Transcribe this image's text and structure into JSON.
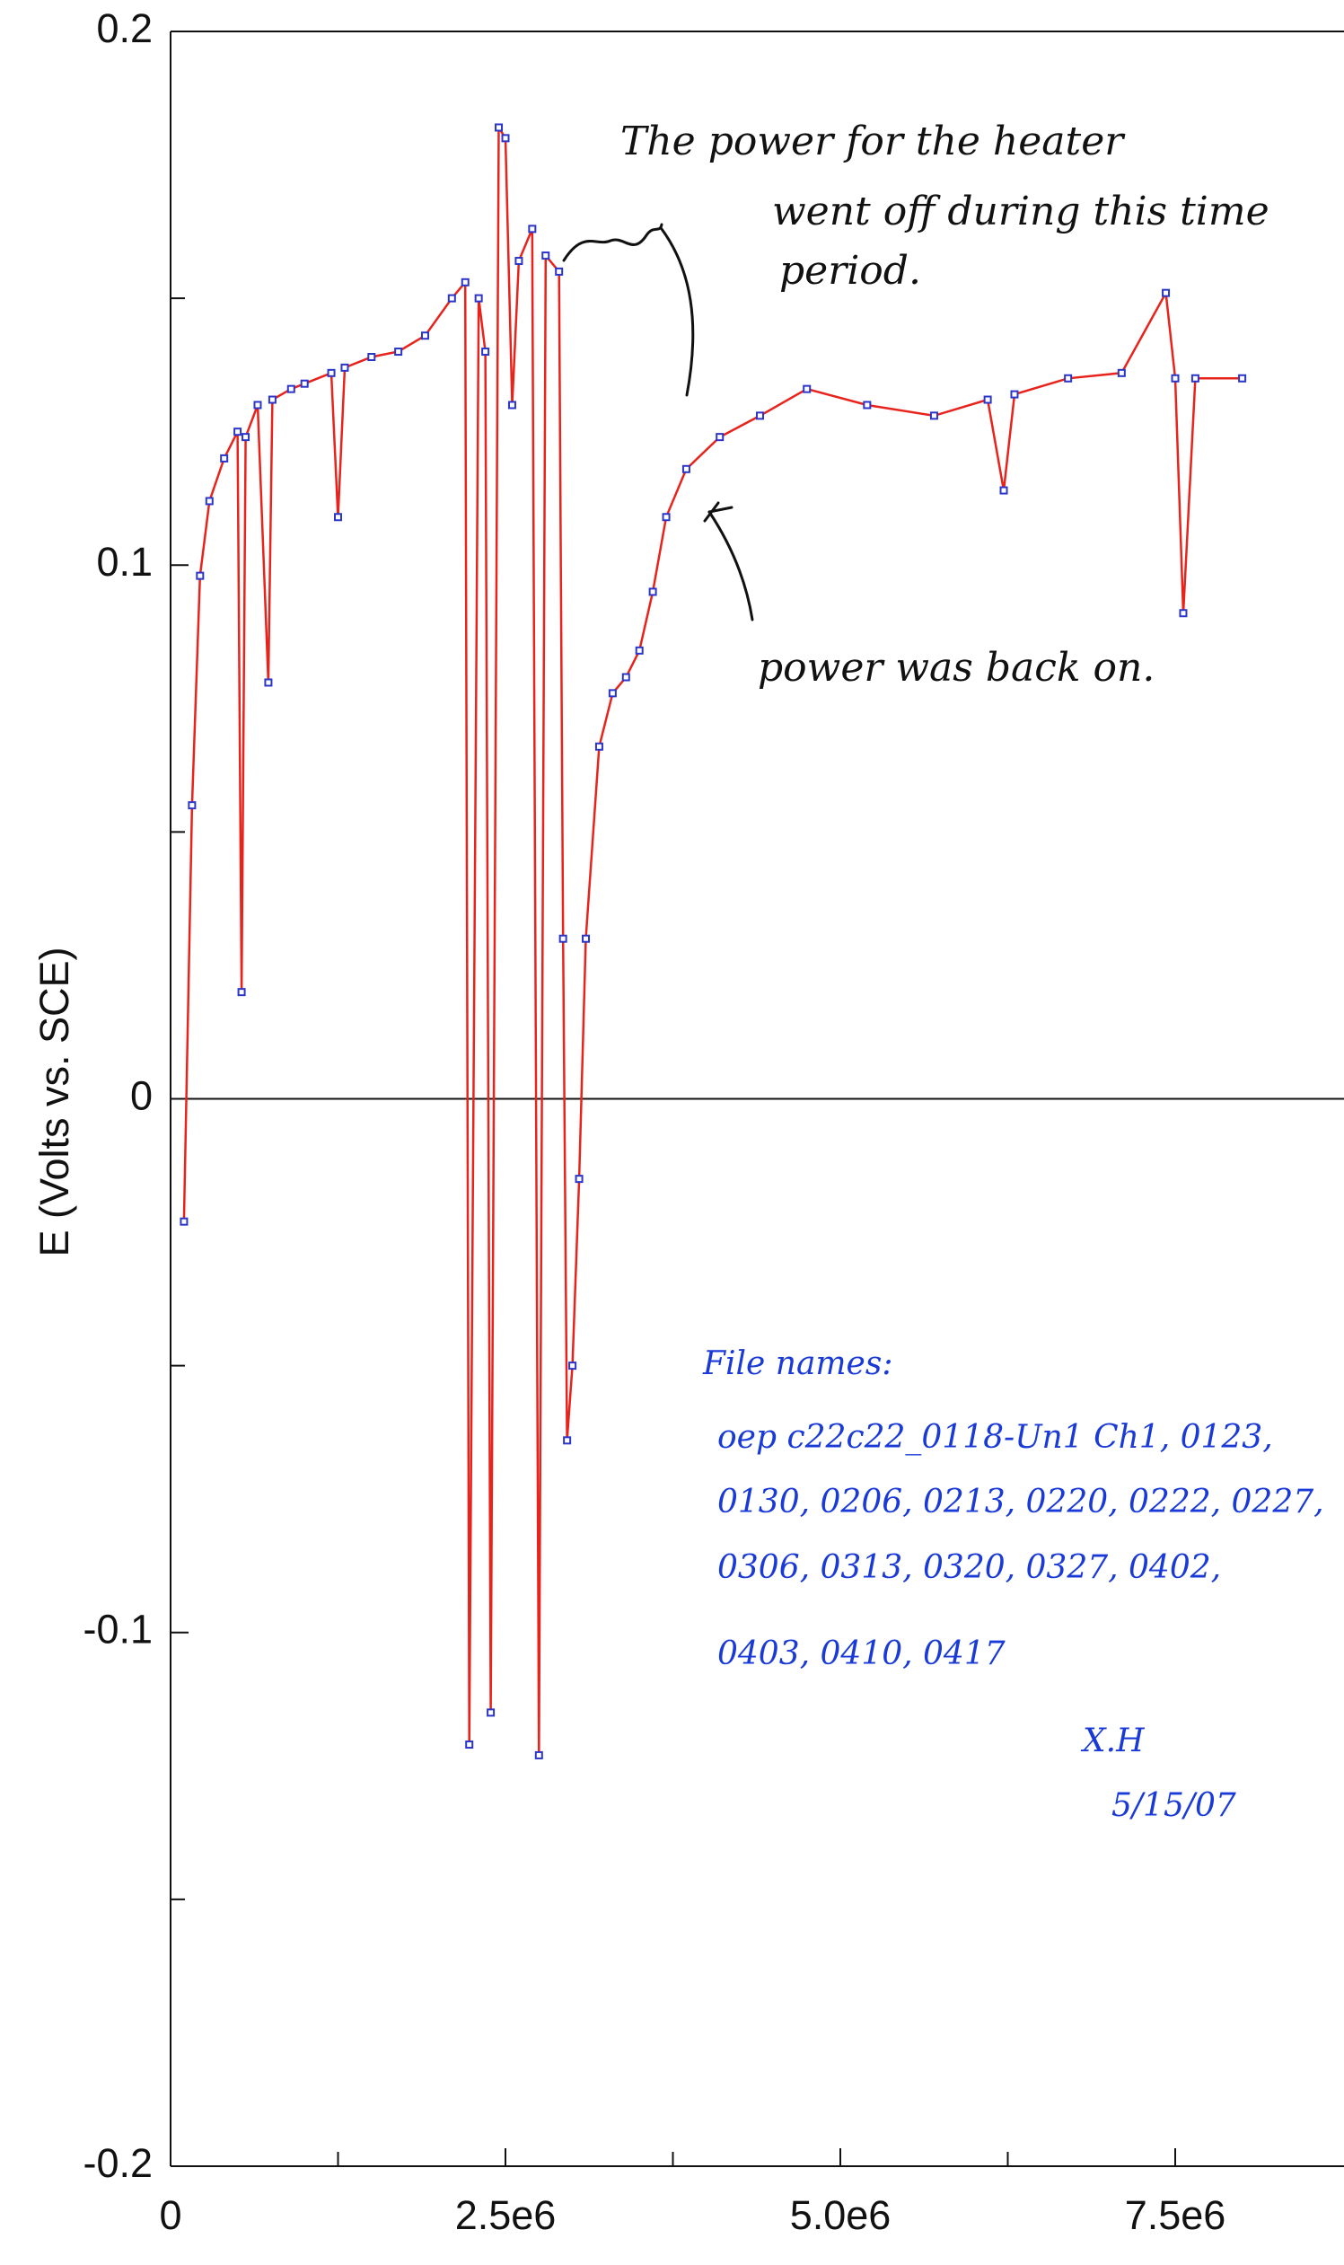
{
  "chart_data": {
    "type": "line",
    "y_label": "E (Volts vs. SCE)",
    "xlim": [
      0,
      8760000
    ],
    "ylim": [
      -0.2,
      0.2
    ],
    "xticks": [
      0,
      {
        "value": 2500000,
        "label": "2.5e6"
      },
      {
        "value": 5000000,
        "label": "5.0e6"
      },
      {
        "value": 7500000,
        "label": "7.5e6"
      }
    ],
    "x_minor_ticks": [
      1250000,
      3750000,
      6250000
    ],
    "yticks": [
      -0.2,
      -0.1,
      0,
      0.1,
      0.2
    ],
    "y_minor_ticks": [
      -0.15,
      -0.05,
      0.05,
      0.15
    ],
    "zero_line": true,
    "series": [
      {
        "color": "#e8231c",
        "marker_color": "#2b35c8",
        "x": [
          100000,
          160000,
          220000,
          290000,
          400000,
          500000,
          530000,
          560000,
          650000,
          730000,
          760000,
          900000,
          1000000,
          1200000,
          1250000,
          1300000,
          1500000,
          1700000,
          1900000,
          2100000,
          2200000,
          2230000,
          2300000,
          2350000,
          2390000,
          2450000,
          2500000,
          2550000,
          2600000,
          2700000,
          2750000,
          2800000,
          2900000,
          2930000,
          2960000,
          3000000,
          3050000,
          3100000,
          3200000,
          3300000,
          3400000,
          3500000,
          3600000,
          3700000,
          3850000,
          4100000,
          4400000,
          4750000,
          5200000,
          5700000,
          6100000,
          6220000,
          6300000,
          6700000,
          7100000,
          7430000,
          7500000,
          7560000,
          7650000,
          8000000
        ],
        "values": [
          -0.023,
          0.055,
          0.098,
          0.112,
          0.12,
          0.125,
          0.02,
          0.124,
          0.13,
          0.078,
          0.131,
          0.133,
          0.134,
          0.136,
          0.109,
          0.137,
          0.139,
          0.14,
          0.143,
          0.15,
          0.153,
          -0.121,
          0.15,
          0.14,
          -0.115,
          0.182,
          0.18,
          0.13,
          0.157,
          0.163,
          -0.123,
          0.158,
          0.155,
          0.03,
          -0.064,
          -0.05,
          -0.015,
          0.03,
          0.066,
          0.076,
          0.079,
          0.084,
          0.095,
          0.109,
          0.118,
          0.124,
          0.128,
          0.133,
          0.13,
          0.128,
          0.131,
          0.114,
          0.132,
          0.135,
          0.136,
          0.151,
          0.135,
          0.091,
          0.135,
          0.135
        ]
      }
    ],
    "annotations": [
      "The power for the heater",
      "went off during this time",
      "period.",
      "power was back on."
    ],
    "notes": [
      "File names:",
      "oep c22c22_0118-Un1 Ch1, 0123,",
      "0130, 0206, 0213, 0220, 0222, 0227,",
      "0306, 0313, 0320, 0327, 0402,",
      "0403, 0410, 0417",
      "X.H",
      "5/15/07"
    ]
  }
}
